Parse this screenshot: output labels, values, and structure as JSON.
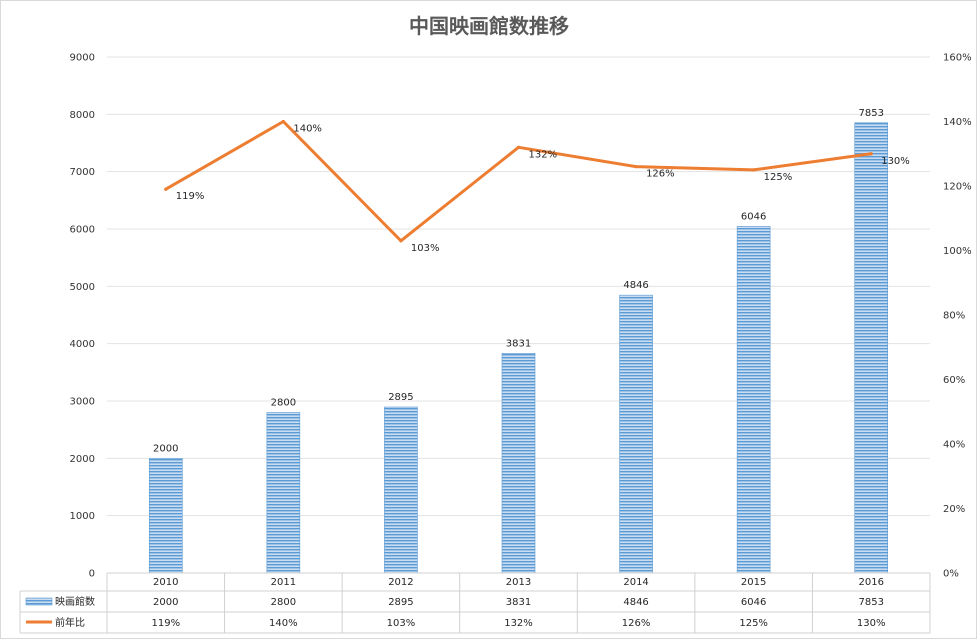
{
  "chart_data": {
    "type": "bar",
    "title": "中国映画館数推移",
    "categories": [
      "2010",
      "2011",
      "2012",
      "2013",
      "2014",
      "2015",
      "2016"
    ],
    "series": [
      {
        "name": "映画館数",
        "type": "bar",
        "axis": "left",
        "values": [
          2000,
          2800,
          2895,
          3831,
          4846,
          6046,
          7853
        ],
        "labels": [
          "2000",
          "2800",
          "2895",
          "3831",
          "4846",
          "6046",
          "7853"
        ],
        "color": "#5b9bd5"
      },
      {
        "name": "前年比",
        "type": "line",
        "axis": "right",
        "values": [
          119,
          140,
          103,
          132,
          126,
          125,
          130
        ],
        "labels": [
          "119%",
          "140%",
          "103%",
          "132%",
          "126%",
          "125%",
          "130%"
        ],
        "color": "#ed7d31"
      }
    ],
    "y_left": {
      "ylim": [
        0,
        9000
      ],
      "ticks": [
        "0",
        "1000",
        "2000",
        "3000",
        "4000",
        "5000",
        "6000",
        "7000",
        "8000",
        "9000"
      ]
    },
    "y_right": {
      "ylim": [
        0,
        160
      ],
      "ticks": [
        "0%",
        "20%",
        "40%",
        "60%",
        "80%",
        "100%",
        "120%",
        "140%",
        "160%"
      ]
    },
    "grid": true,
    "legend": "data-table"
  }
}
